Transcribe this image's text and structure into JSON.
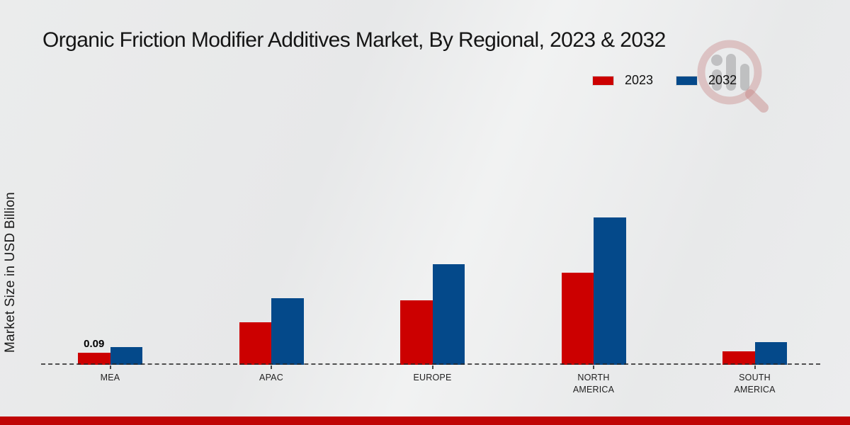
{
  "title": "Organic Friction Modifier Additives Market, By Regional, 2023 & 2032",
  "colors": {
    "series_2023": "#cc0000",
    "series_2032": "#04498a",
    "footer_band": "#c00505",
    "axis_dash": "#2e2e2e"
  },
  "footer": {},
  "watermark_icon": "magnifier-bar-chart-logo",
  "chart_data": {
    "type": "bar",
    "title": "Organic Friction Modifier Additives Market, By Regional, 2023 & 2032",
    "xlabel": "",
    "ylabel": "Market Size in USD Billion",
    "categories": [
      "MEA",
      "APAC",
      "EUROPE",
      "NORTH AMERICA",
      "SOUTH AMERICA"
    ],
    "series": [
      {
        "name": "2023",
        "color": "#cc0000",
        "values": [
          0.09,
          0.32,
          0.48,
          0.69,
          0.1
        ]
      },
      {
        "name": "2032",
        "color": "#04498a",
        "values": [
          0.13,
          0.5,
          0.75,
          1.1,
          0.17
        ]
      }
    ],
    "annotations": [
      {
        "category": "MEA",
        "series": "2023",
        "text": "0.09"
      }
    ],
    "ylim": [
      0,
      1.2
    ],
    "grid": false,
    "axis_style": "dashed-zero-line-only",
    "legend_position": "top-right"
  }
}
